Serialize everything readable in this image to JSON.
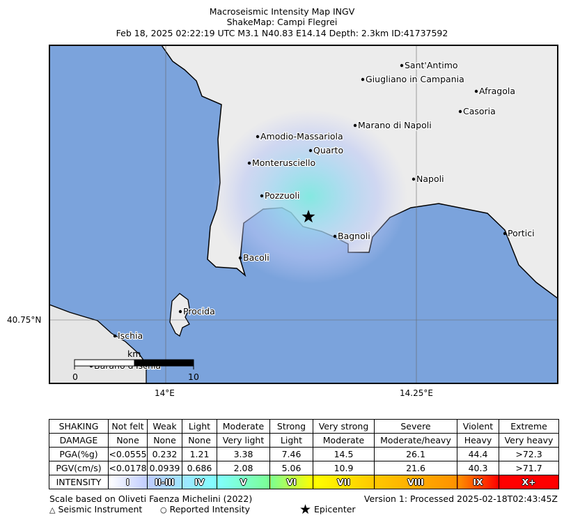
{
  "title": {
    "line1": "Macroseismic Intensity Map INGV",
    "line2": "ShakeMap: Campi Flegrei",
    "line3": "Feb 18, 2025 02:22:19 UTC M3.1 N40.83 E14.14 Depth: 2.3km ID:41737592"
  },
  "axes": {
    "lat_label": "40.75°N",
    "lon_labels": [
      "14°E",
      "14.25°E"
    ]
  },
  "cities": [
    {
      "name": "Sant'Antimo"
    },
    {
      "name": "Giugliano in Campania"
    },
    {
      "name": "Afragola"
    },
    {
      "name": "Casoria"
    },
    {
      "name": "Marano di Napoli"
    },
    {
      "name": "Amodio-Massariola"
    },
    {
      "name": "Quarto"
    },
    {
      "name": "Monterusciello"
    },
    {
      "name": "Napoli"
    },
    {
      "name": "Pozzuoli"
    },
    {
      "name": "Bagnoli"
    },
    {
      "name": "Portici"
    },
    {
      "name": "Bacoli"
    },
    {
      "name": "Procida"
    },
    {
      "name": "Ischia"
    },
    {
      "name": "Barano d'Ischia"
    }
  ],
  "scalebar": {
    "unit": "km",
    "start": "0",
    "end": "10"
  },
  "legend": {
    "rows": [
      {
        "label": "SHAKING",
        "values": [
          "Not felt",
          "Weak",
          "Light",
          "Moderate",
          "Strong",
          "Very strong",
          "Severe",
          "Violent",
          "Extreme"
        ]
      },
      {
        "label": "DAMAGE",
        "values": [
          "None",
          "None",
          "None",
          "Very light",
          "Light",
          "Moderate",
          "Moderate/heavy",
          "Heavy",
          "Very heavy"
        ]
      },
      {
        "label": "PGA(%g)",
        "values": [
          "<0.0555",
          "0.232",
          "1.21",
          "3.38",
          "7.46",
          "14.5",
          "26.1",
          "44.4",
          ">72.3"
        ]
      },
      {
        "label": "PGV(cm/s)",
        "values": [
          "<0.0178",
          "0.0939",
          "0.686",
          "2.08",
          "5.06",
          "10.9",
          "21.6",
          "40.3",
          ">71.7"
        ]
      }
    ],
    "intensity_label": "INTENSITY",
    "intensity": [
      "I",
      "II-III",
      "IV",
      "V",
      "VI",
      "VII",
      "VIII",
      "IX",
      "X+"
    ],
    "colors": [
      "#ffffff",
      "#bfccff",
      "#a0e6ff",
      "#80ffff",
      "#7aff93",
      "#ffff00",
      "#ffc800",
      "#ff9100",
      "#ff0000"
    ]
  },
  "footer": {
    "scale_note": "Scale based on Oliveti Faenza Michelini (2022)",
    "version": "Version 1: Processed 2025-02-18T02:43:45Z",
    "seismic": "Seismic Instrument",
    "reported": "Reported Intensity",
    "epicenter": "Epicenter"
  },
  "colors": {
    "sea": "#7ba3dc",
    "land": "#eeeeee"
  }
}
